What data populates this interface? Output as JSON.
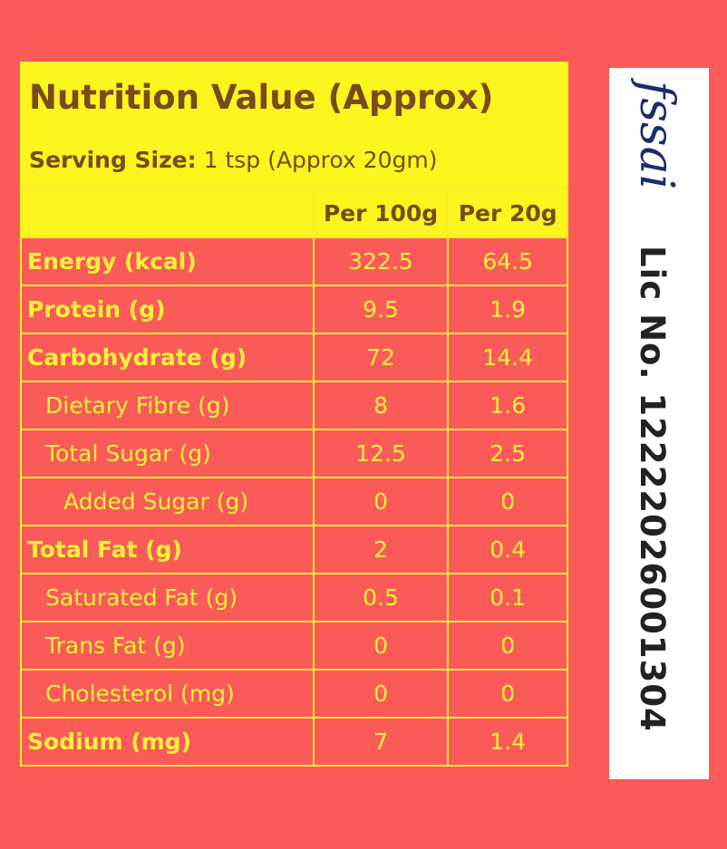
{
  "header": {
    "title": "Nutrition Value (Approx)",
    "serving_label": "Serving Size:",
    "serving_value": "1 tsp (Approx 20gm)"
  },
  "table": {
    "columns": [
      "Per 100g",
      "Per 20g"
    ],
    "rows": [
      {
        "label": "Energy (kcal)",
        "values": [
          "322.5",
          "64.5"
        ],
        "level": 0
      },
      {
        "label": "Protein (g)",
        "values": [
          "9.5",
          "1.9"
        ],
        "level": 0
      },
      {
        "label": "Carbohydrate (g)",
        "values": [
          "72",
          "14.4"
        ],
        "level": 0
      },
      {
        "label": "Dietary Fibre (g)",
        "values": [
          "8",
          "1.6"
        ],
        "level": 1
      },
      {
        "label": "Total Sugar (g)",
        "values": [
          "12.5",
          "2.5"
        ],
        "level": 1
      },
      {
        "label": "Added Sugar (g)",
        "values": [
          "0",
          "0"
        ],
        "level": 2
      },
      {
        "label": "Total Fat (g)",
        "values": [
          "2",
          "0.4"
        ],
        "level": 0
      },
      {
        "label": "Saturated Fat (g)",
        "values": [
          "0.5",
          "0.1"
        ],
        "level": 1
      },
      {
        "label": "Trans Fat (g)",
        "values": [
          "0",
          "0"
        ],
        "level": 1
      },
      {
        "label": "Cholesterol (mg)",
        "values": [
          "0",
          "0"
        ],
        "level": 1
      },
      {
        "label": "Sodium (mg)",
        "values": [
          "7",
          "1.4"
        ],
        "level": 0
      }
    ]
  },
  "badge": {
    "logo": "fssai",
    "license": "Lic No. 12222026001304"
  }
}
